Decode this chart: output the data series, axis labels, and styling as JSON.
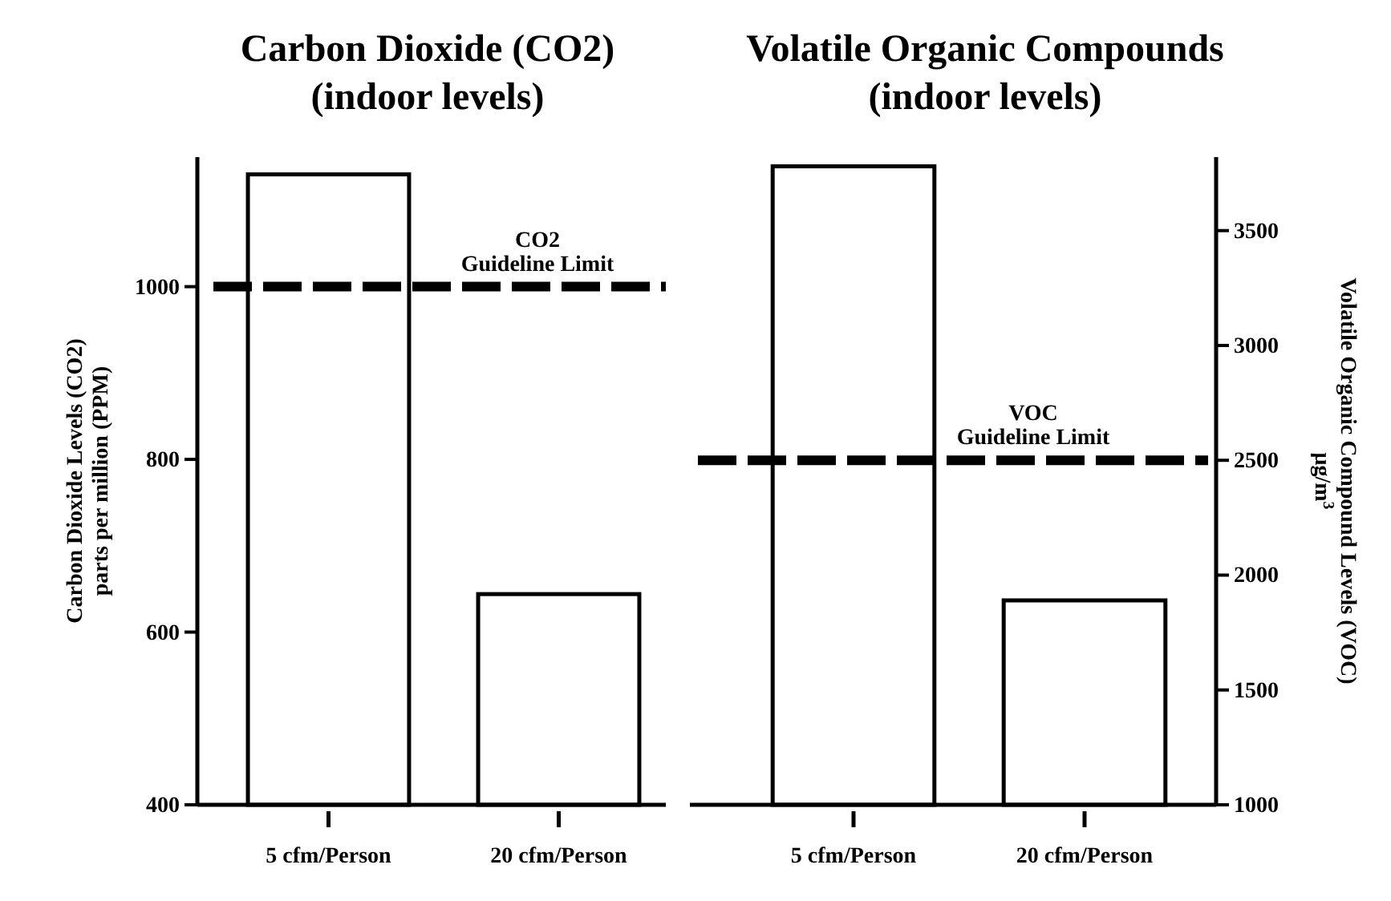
{
  "chart_data": [
    {
      "type": "bar",
      "title": "Carbon Dioxide (CO2)\n(indoor levels)",
      "ylabel": "Carbon Dioxide Levels (CO2)\nparts per million (PPM)",
      "categories": [
        "5 cfm/Person",
        "20 cfm/Person"
      ],
      "series": [
        {
          "color": "#ffffff",
          "values": [
            1130,
            644
          ]
        }
      ],
      "ylim": [
        400,
        1150
      ],
      "yticks": [
        400,
        600,
        800,
        1000
      ],
      "grid": false,
      "ref_lines": [
        {
          "axis": "y",
          "value": 1000,
          "label": "CO2\nGuideline Limit",
          "color": "#000000",
          "line_style": "dashed"
        }
      ]
    },
    {
      "type": "bar",
      "title": "Volatile Organic Compounds\n(indoor levels)",
      "y2label": "Volatile Organic Compound Levels (VOC)\nμg/m$^{3}$",
      "categories": [
        "5 cfm/Person",
        "20 cfm/Person"
      ],
      "series": [
        {
          "color": "#ffffff",
          "values": [
            3780,
            1890
          ],
          "axis": "y2"
        }
      ],
      "y2lim": [
        1000,
        3820
      ],
      "y2ticks": [
        1000,
        1500,
        2000,
        2500,
        3000,
        3500
      ],
      "grid": false,
      "ref_lines": [
        {
          "axis": "y2",
          "value": 2500,
          "label": "VOC\nGuideline Limit",
          "color": "#000000",
          "line_style": "dashed"
        }
      ]
    }
  ]
}
